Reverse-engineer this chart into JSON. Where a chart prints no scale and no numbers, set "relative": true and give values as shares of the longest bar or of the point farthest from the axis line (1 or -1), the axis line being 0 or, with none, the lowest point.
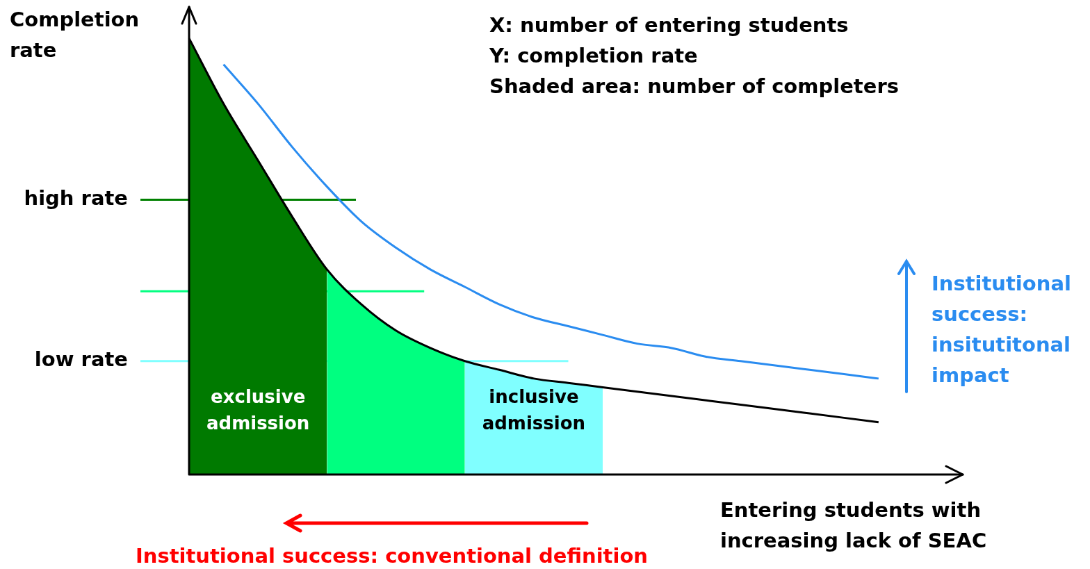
{
  "chart_data": {
    "type": "line",
    "relative": true,
    "marker": "none",
    "line_style": "solid",
    "xlabel": "Entering students with increasing lack of SEAC",
    "ylabel": "Completion rate",
    "categories": [
      null,
      null,
      null,
      null,
      null,
      null,
      null,
      null,
      null,
      null,
      null,
      null,
      null,
      null,
      null,
      null,
      null,
      null,
      null,
      null,
      null,
      null,
      null
    ],
    "series": [
      {
        "type": "area",
        "name": "exclusive admission",
        "color": "#007a00",
        "values": [
          1,
          0.85,
          0.72,
          0.59,
          0.47,
          null,
          null,
          null,
          null,
          null,
          null,
          null,
          null,
          null,
          null,
          null,
          null,
          null,
          null,
          null,
          null,
          null,
          null
        ]
      },
      {
        "type": "area",
        "color": "#00ff80",
        "values": [
          null,
          null,
          null,
          null,
          0.47,
          0.39,
          0.33,
          0.29,
          0.26,
          null,
          null,
          null,
          null,
          null,
          null,
          null,
          null,
          null,
          null,
          null,
          null,
          null,
          null
        ]
      },
      {
        "type": "area",
        "name": "inclusive admission",
        "color": "#80ffff",
        "values": [
          null,
          null,
          null,
          null,
          null,
          null,
          null,
          null,
          0.26,
          0.24,
          0.22,
          0.21,
          0.2,
          null,
          null,
          null,
          null,
          null,
          null,
          null,
          null,
          null,
          null
        ]
      },
      {
        "color": "#000000",
        "values": [
          1,
          0.85,
          0.72,
          0.59,
          0.47,
          0.39,
          0.33,
          0.29,
          0.26,
          0.24,
          0.22,
          0.21,
          0.2,
          0.19,
          0.18,
          0.17,
          0.16,
          0.15,
          0.14,
          0.13,
          0.12,
          null,
          null
        ]
      },
      {
        "color": "#2a8cf0",
        "values": [
          null,
          0.94,
          0.85,
          0.75,
          0.66,
          0.58,
          0.52,
          0.47,
          0.43,
          0.39,
          0.36,
          0.34,
          0.32,
          0.3,
          0.29,
          0.27,
          0.26,
          0.25,
          0.24,
          0.23,
          0.22,
          null,
          null
        ]
      }
    ],
    "ref_lines": [
      {
        "axis": "y",
        "value": 0.63,
        "label": "high rate",
        "color": "#008000"
      },
      {
        "axis": "y",
        "value": 0.42,
        "label": null,
        "color": "#00ff80"
      },
      {
        "axis": "y",
        "value": 0.26,
        "label": "low rate",
        "color": "#80ffff"
      }
    ],
    "annotations": [
      "X: number of entering students",
      "Y: completion rate",
      "Shaded area: number of completers",
      "Institutional success: insitutitonal impact",
      "Institutional success: conventional definition"
    ]
  }
}
